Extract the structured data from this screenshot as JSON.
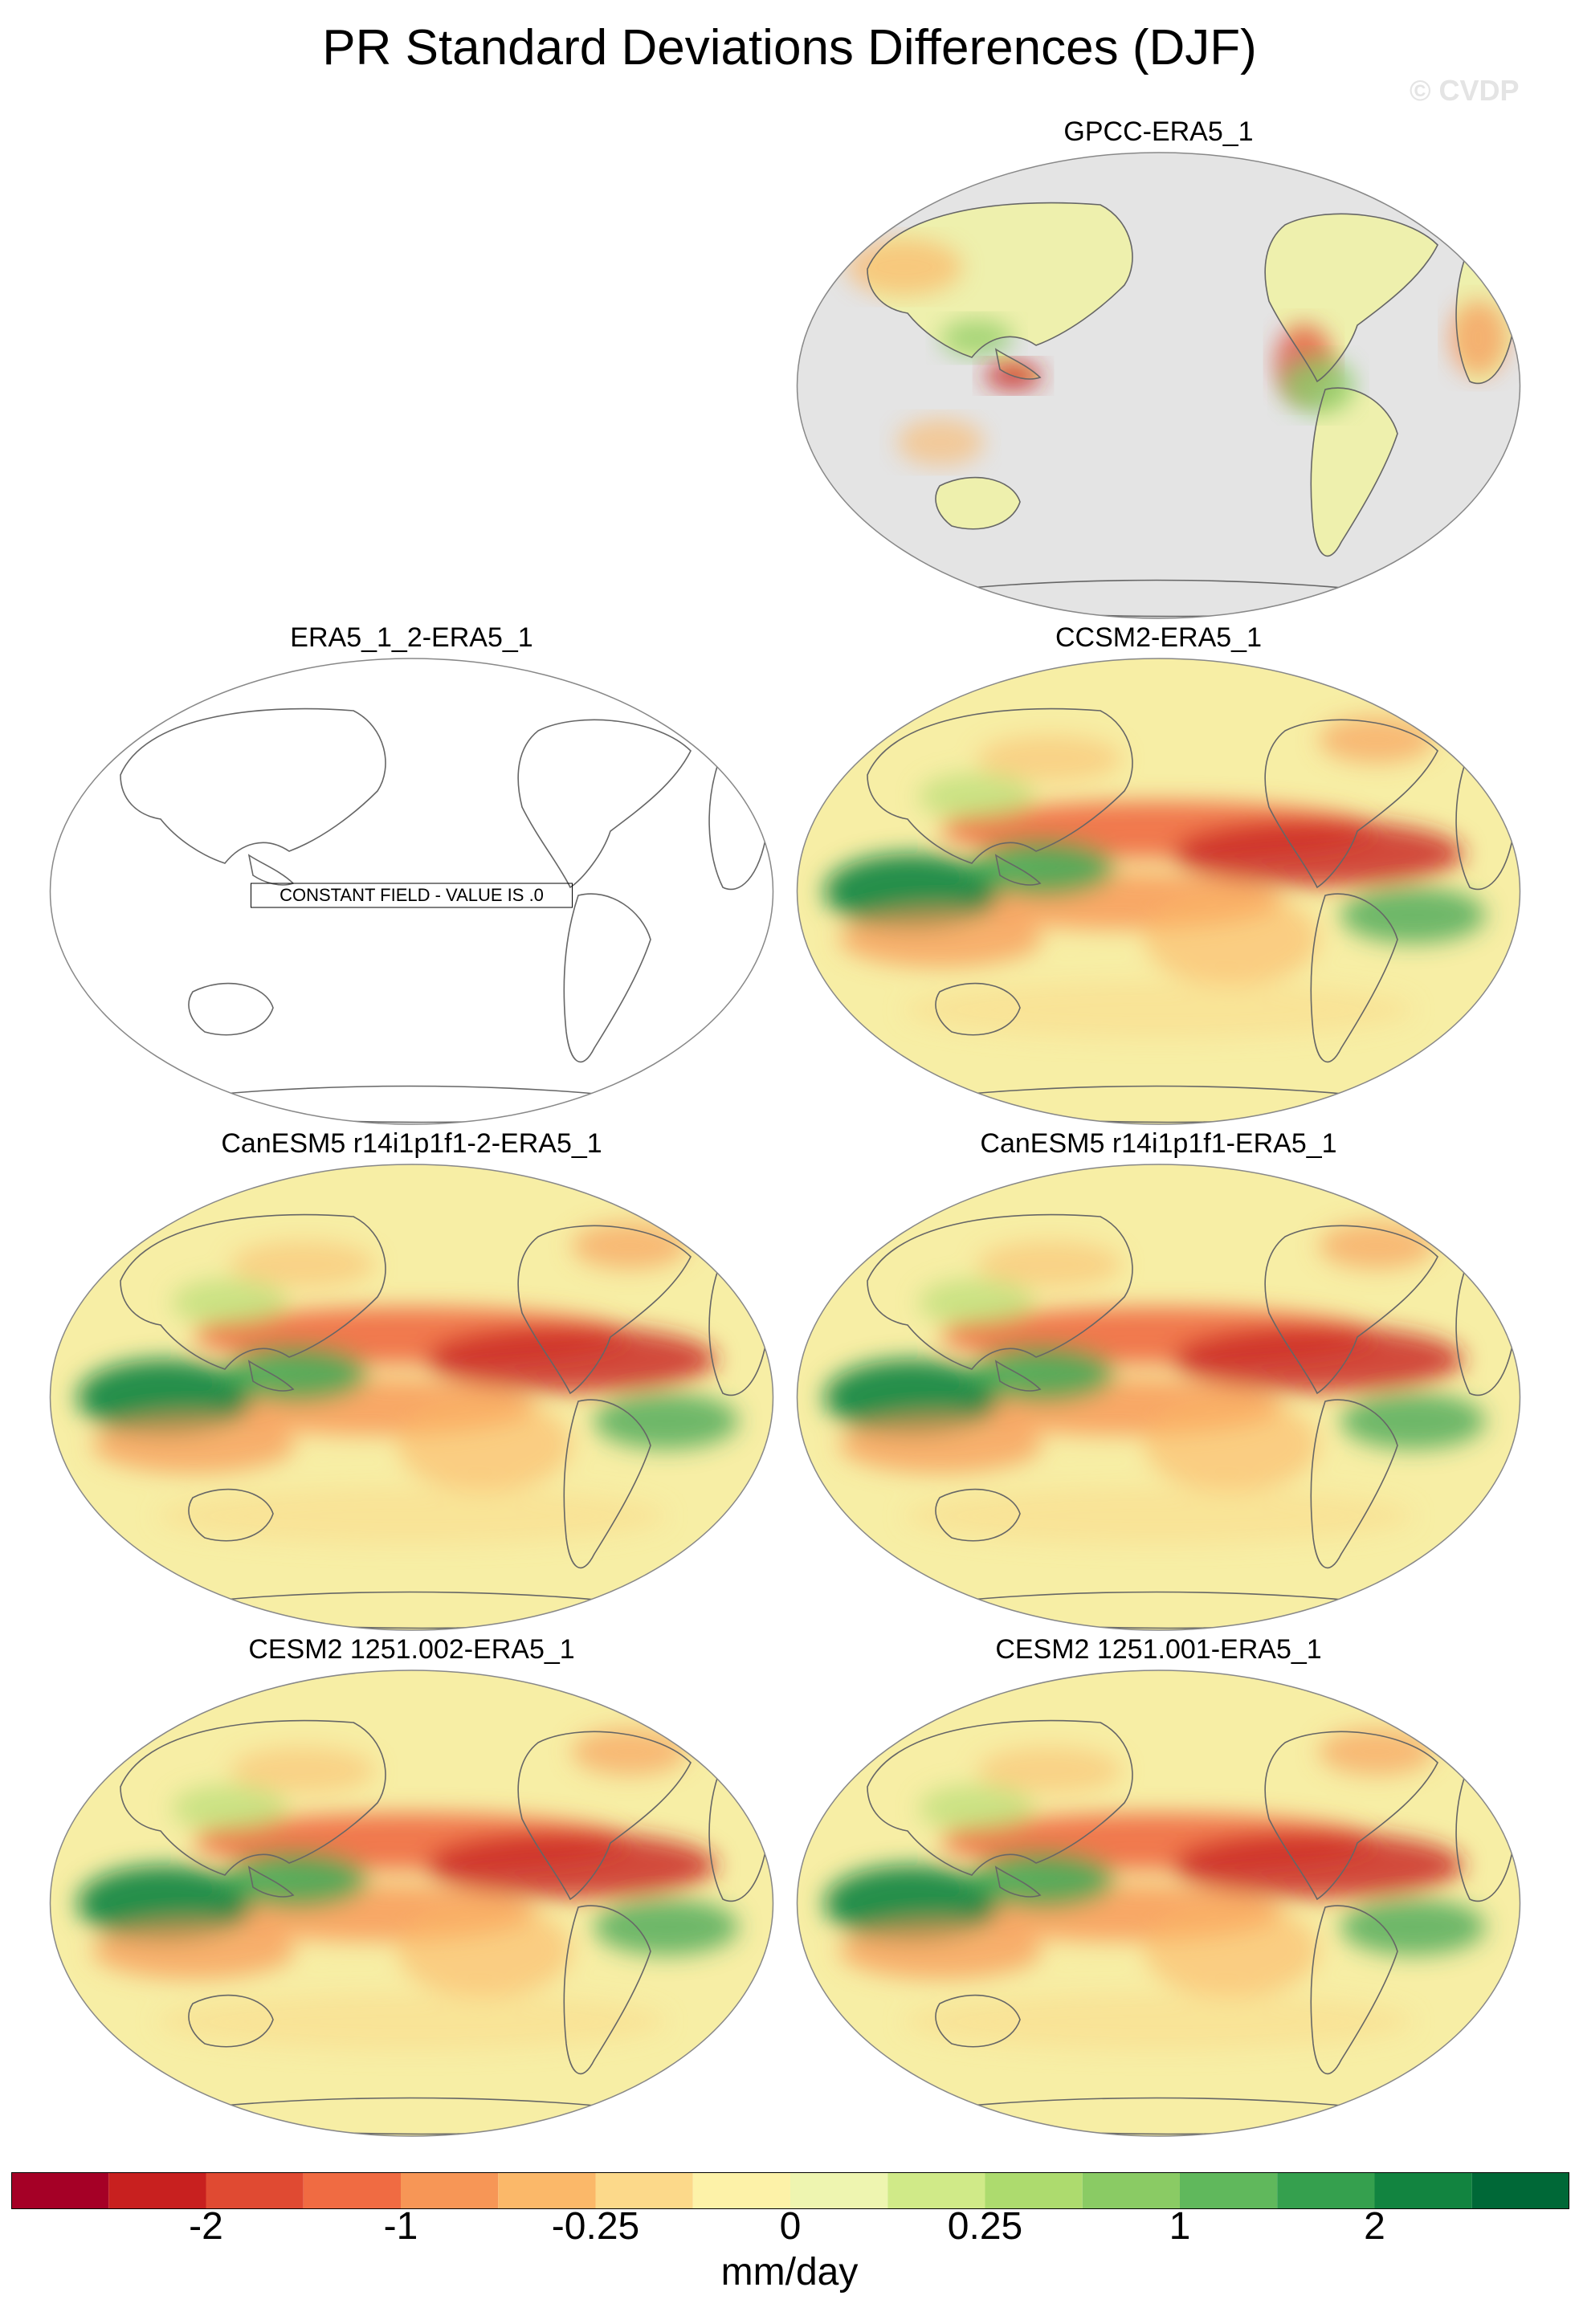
{
  "title": "PR Standard Deviations Differences (DJF)",
  "watermark": "© CVDP",
  "panels": [
    {
      "label": "GPCC-ERA5_1",
      "kind": "land"
    },
    {
      "label": "ERA5_1_2-ERA5_1",
      "kind": "constant",
      "note": "CONSTANT FIELD - VALUE IS .0"
    },
    {
      "label": "CCSM2-ERA5_1",
      "kind": "full"
    },
    {
      "label": "CanESM5 r14i1p1f1-2-ERA5_1",
      "kind": "full"
    },
    {
      "label": "CanESM5 r14i1p1f1-ERA5_1",
      "kind": "full"
    },
    {
      "label": "CESM2 1251.002-ERA5_1",
      "kind": "full"
    },
    {
      "label": "CESM2 1251.001-ERA5_1",
      "kind": "full"
    }
  ],
  "colorbar": {
    "units": "mm/day",
    "colors": [
      "#a50026",
      "#c8201f",
      "#e04a32",
      "#f06b42",
      "#f79656",
      "#fbb869",
      "#fcd98a",
      "#fdf2a8",
      "#eef5b0",
      "#d0ea88",
      "#addb6e",
      "#8acb64",
      "#60b85c",
      "#35a04e",
      "#128440",
      "#006837"
    ],
    "tick_labels": [
      "-2",
      "-1",
      "-0.25",
      "0",
      "0.25",
      "1",
      "2"
    ]
  }
}
